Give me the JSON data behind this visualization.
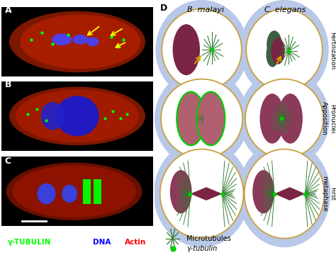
{
  "bg_color": "#000000",
  "fig_bg": "#ffffff",
  "legend_items": [
    "γ-TUBULIN",
    "DNA",
    "Actin"
  ],
  "legend_colors": [
    "#00ff00",
    "#0000ff",
    "#ff0000"
  ],
  "col_labels": [
    "B. malayi",
    "C. elegans"
  ],
  "row_labels": [
    "Fertilization",
    "Pronuclei\nApposition",
    "First\nmetaphase"
  ],
  "cell_outer_color": "#b8c8e8",
  "cell_inner_color": "#ffffff",
  "cell_wall_color": "#c8a040",
  "nucleus_color": "#8b3a5a",
  "mt_color": "#2d7a2d",
  "gamma_tubulin_color": "#00cc00",
  "pronuclei_outline": "#00cc00",
  "arrow_color": "#d4a000",
  "microtubule_legend_color": "#2d7a2d",
  "gamma_legend_color": "#00cc00"
}
